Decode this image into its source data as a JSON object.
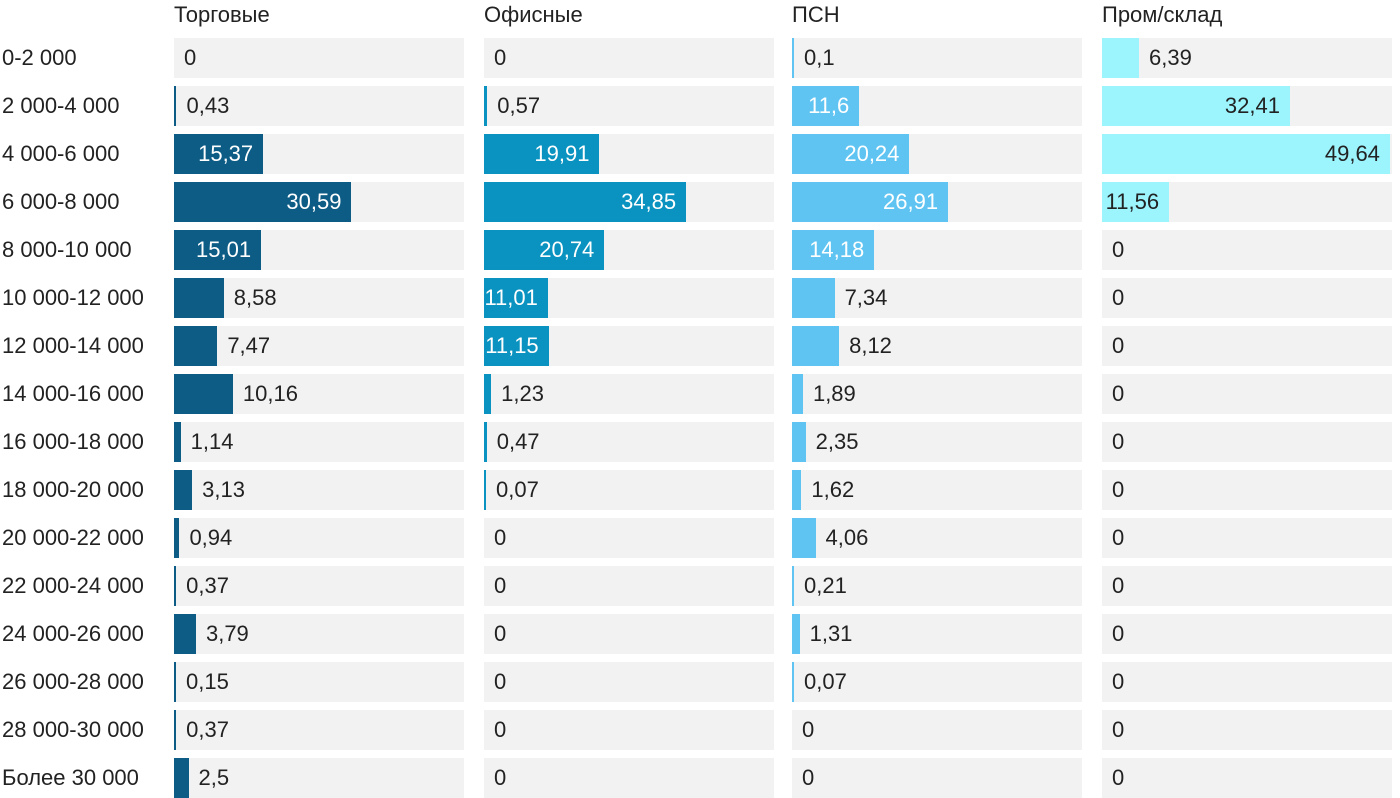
{
  "chart_data": {
    "type": "bar",
    "orientation": "horizontal",
    "layout": "small-multiples",
    "xlim": [
      0,
      50
    ],
    "categories": [
      "0-2 000",
      "2 000-4 000",
      "4 000-6 000",
      "6 000-8 000",
      "8 000-10 000",
      "10 000-12 000",
      "12 000-14 000",
      "14 000-16 000",
      "16 000-18 000",
      "18 000-20 000",
      "20 000-22 000",
      "22 000-24 000",
      "24 000-26 000",
      "26 000-28 000",
      "28 000-30 000",
      "Более 30 000"
    ],
    "series": [
      {
        "name": "Торговые",
        "color": "#0d5c85",
        "values": [
          0,
          0.43,
          15.37,
          30.59,
          15.01,
          8.58,
          7.47,
          10.16,
          1.14,
          3.13,
          0.94,
          0.37,
          3.79,
          0.15,
          0.37,
          2.5
        ],
        "labels": [
          "0",
          "0,43",
          "15,37",
          "30,59",
          "15,01",
          "8,58",
          "7,47",
          "10,16",
          "1,14",
          "3,13",
          "0,94",
          "0,37",
          "3,79",
          "0,15",
          "0,37",
          "2,5"
        ]
      },
      {
        "name": "Офисные",
        "color": "#0a93c0",
        "values": [
          0,
          0.57,
          19.91,
          34.85,
          20.74,
          11.01,
          11.15,
          1.23,
          0.47,
          0.07,
          0,
          0,
          0,
          0,
          0,
          0
        ],
        "labels": [
          "0",
          "0,57",
          "19,91",
          "34,85",
          "20,74",
          "11,01",
          "11,15",
          "1,23",
          "0,47",
          "0,07",
          "0",
          "0",
          "0",
          "0",
          "0",
          "0"
        ]
      },
      {
        "name": "ПСН",
        "color": "#5fc4f2",
        "values": [
          0.1,
          11.6,
          20.24,
          26.91,
          14.18,
          7.34,
          8.12,
          1.89,
          2.35,
          1.62,
          4.06,
          0.21,
          1.31,
          0.07,
          0,
          0
        ],
        "labels": [
          "0,1",
          "11,6",
          "20,24",
          "26,91",
          "14,18",
          "7,34",
          "8,12",
          "1,89",
          "2,35",
          "1,62",
          "4,06",
          "0,21",
          "1,31",
          "0,07",
          "0",
          "0"
        ]
      },
      {
        "name": "Пром/склад",
        "color": "#9cf4fd",
        "values": [
          6.39,
          32.41,
          49.64,
          11.56,
          0,
          0,
          0,
          0,
          0,
          0,
          0,
          0,
          0,
          0,
          0,
          0
        ],
        "labels": [
          "6,39",
          "32,41",
          "49,64",
          "11,56",
          "0",
          "0",
          "0",
          "0",
          "0",
          "0",
          "0",
          "0",
          "0",
          "0",
          "0",
          "0"
        ]
      }
    ]
  }
}
